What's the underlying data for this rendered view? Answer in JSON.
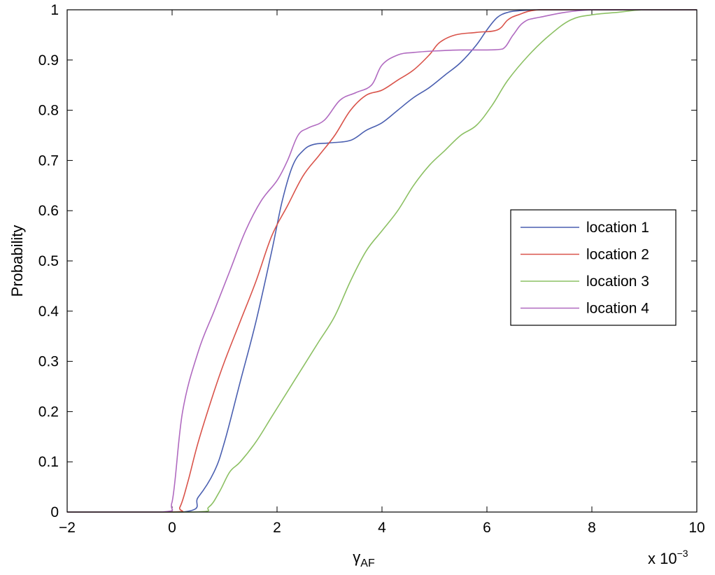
{
  "chart_data": {
    "type": "line",
    "title": "",
    "xlabel": "γ",
    "xlabel_subscript": "AF",
    "ylabel": "Probability",
    "x_multiplier_base": "x 10",
    "x_multiplier_exp": "−3",
    "xlim": [
      -2,
      10
    ],
    "ylim": [
      0,
      1
    ],
    "x_ticks": [
      -2,
      0,
      2,
      4,
      6,
      8,
      10
    ],
    "x_tick_labels": [
      "−2",
      "0",
      "2",
      "4",
      "6",
      "8",
      "10"
    ],
    "y_ticks": [
      0,
      0.1,
      0.2,
      0.3,
      0.4,
      0.5,
      0.6,
      0.7,
      0.8,
      0.9,
      1
    ],
    "y_tick_labels": [
      "0",
      "0.1",
      "0.2",
      "0.3",
      "0.4",
      "0.5",
      "0.6",
      "0.7",
      "0.8",
      "0.9",
      "1"
    ],
    "grid": false,
    "legend_position": "center-right",
    "series": [
      {
        "name": "location 1",
        "color": "#4a5fb0",
        "x": [
          -2,
          0.2,
          0.5,
          0.8,
          1.0,
          1.3,
          1.6,
          1.9,
          2.1,
          2.3,
          2.5,
          2.7,
          3.0,
          3.4,
          3.7,
          4.0,
          4.3,
          4.6,
          4.9,
          5.2,
          5.5,
          5.8,
          6.0,
          6.2,
          6.4,
          6.6,
          7.0,
          8.0,
          10.0
        ],
        "y": [
          0,
          0,
          0.03,
          0.08,
          0.14,
          0.26,
          0.38,
          0.52,
          0.62,
          0.69,
          0.72,
          0.732,
          0.735,
          0.74,
          0.76,
          0.775,
          0.8,
          0.825,
          0.845,
          0.87,
          0.895,
          0.93,
          0.96,
          0.985,
          0.995,
          0.998,
          1.0,
          1.0,
          1.0
        ]
      },
      {
        "name": "location 2",
        "color": "#d9534a",
        "x": [
          -2,
          0.0,
          0.15,
          0.3,
          0.5,
          0.8,
          1.0,
          1.3,
          1.6,
          1.9,
          2.2,
          2.5,
          2.8,
          3.1,
          3.4,
          3.7,
          4.0,
          4.3,
          4.6,
          4.9,
          5.1,
          5.4,
          5.8,
          6.2,
          6.4,
          6.6,
          7.0,
          8.0,
          10.0
        ],
        "y": [
          0,
          0,
          0.01,
          0.06,
          0.14,
          0.24,
          0.3,
          0.38,
          0.46,
          0.55,
          0.61,
          0.67,
          0.71,
          0.75,
          0.8,
          0.83,
          0.84,
          0.86,
          0.88,
          0.91,
          0.935,
          0.95,
          0.955,
          0.96,
          0.98,
          0.99,
          1.0,
          1.0,
          1.0
        ]
      },
      {
        "name": "location 3",
        "color": "#8cc063",
        "x": [
          -2,
          0.4,
          0.7,
          0.9,
          1.1,
          1.3,
          1.6,
          1.9,
          2.2,
          2.5,
          2.8,
          3.1,
          3.4,
          3.7,
          4.0,
          4.3,
          4.6,
          4.9,
          5.2,
          5.5,
          5.8,
          6.1,
          6.4,
          6.8,
          7.2,
          7.6,
          8.0,
          8.5,
          9.0,
          10.0
        ],
        "y": [
          0,
          0,
          0.01,
          0.04,
          0.08,
          0.1,
          0.14,
          0.19,
          0.24,
          0.29,
          0.34,
          0.39,
          0.46,
          0.52,
          0.56,
          0.6,
          0.65,
          0.69,
          0.72,
          0.75,
          0.77,
          0.81,
          0.86,
          0.91,
          0.95,
          0.98,
          0.99,
          0.995,
          1.0,
          1.0
        ]
      },
      {
        "name": "location 4",
        "color": "#b06ac0",
        "x": [
          -2,
          -0.2,
          0.0,
          0.2,
          0.5,
          0.8,
          1.1,
          1.4,
          1.7,
          2.0,
          2.2,
          2.4,
          2.6,
          2.9,
          3.2,
          3.5,
          3.8,
          4.0,
          4.3,
          4.6,
          5.0,
          5.5,
          6.0,
          6.3,
          6.5,
          6.7,
          7.0,
          8.0,
          10.0
        ],
        "y": [
          0,
          0,
          0.02,
          0.2,
          0.32,
          0.4,
          0.48,
          0.56,
          0.62,
          0.66,
          0.7,
          0.75,
          0.765,
          0.78,
          0.82,
          0.835,
          0.85,
          0.89,
          0.91,
          0.915,
          0.918,
          0.92,
          0.92,
          0.922,
          0.95,
          0.975,
          0.985,
          1.0,
          1.0
        ]
      }
    ]
  }
}
